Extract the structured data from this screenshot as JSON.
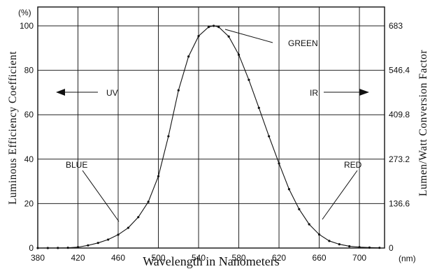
{
  "chart_data": {
    "type": "line",
    "xlabel": "Wavelength in Nanometers",
    "ylabel": "Luminous Efficiency Coefficient",
    "y2label": "Lumen/Watt Conversion Factor",
    "xlim": [
      380,
      725
    ],
    "ylim": [
      0,
      100
    ],
    "y2lim": [
      0,
      683
    ],
    "grid": true,
    "x_ticks": [
      380,
      420,
      460,
      500,
      540,
      580,
      620,
      660,
      700
    ],
    "x_unit": "(nm)",
    "y_ticks": [
      0,
      20,
      40,
      60,
      80,
      100
    ],
    "y_unit": "(%)",
    "y2_ticks": [
      "0",
      "136.6",
      "273.2",
      "409.8",
      "546.4",
      "683"
    ],
    "series": [
      {
        "x": [
          380,
          390,
          400,
          410,
          420,
          430,
          440,
          450,
          460,
          470,
          480,
          490,
          500,
          510,
          520,
          530,
          540,
          550,
          555,
          560,
          570,
          580,
          590,
          600,
          610,
          620,
          630,
          640,
          650,
          660,
          670,
          680,
          690,
          700,
          710,
          720
        ],
        "y": [
          0.004,
          0.012,
          0.04,
          0.12,
          0.4,
          1.2,
          2.3,
          3.8,
          6.0,
          9.1,
          13.9,
          20.8,
          32.3,
          50.3,
          71.0,
          86.2,
          95.4,
          99.5,
          100,
          99.5,
          95.2,
          87.0,
          75.7,
          63.1,
          50.3,
          38.1,
          26.5,
          17.5,
          10.7,
          6.1,
          3.2,
          1.7,
          0.8,
          0.4,
          0.2,
          0.1
        ]
      }
    ],
    "annotations": [
      {
        "text": "GREEN"
      },
      {
        "text": "BLUE"
      },
      {
        "text": "RED"
      },
      {
        "text": "UV"
      },
      {
        "text": "IR"
      }
    ]
  }
}
